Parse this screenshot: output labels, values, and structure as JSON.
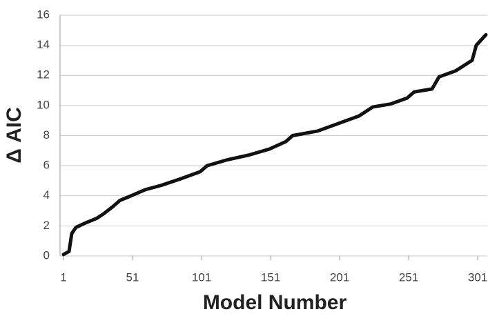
{
  "chart_data": {
    "type": "line",
    "xlabel": "Model Number",
    "ylabel": "Δ AIC",
    "x": [
      1,
      5,
      7,
      10,
      17,
      25,
      30,
      37,
      42,
      50,
      60,
      72,
      85,
      100,
      105,
      120,
      135,
      150,
      162,
      167,
      185,
      200,
      215,
      225,
      238,
      250,
      255,
      268,
      273,
      285,
      297,
      300,
      307
    ],
    "series": [
      {
        "name": "Δ AIC",
        "color": "#111111",
        "values": [
          0.1,
          0.3,
          1.5,
          1.9,
          2.2,
          2.5,
          2.8,
          3.3,
          3.7,
          4.0,
          4.4,
          4.7,
          5.1,
          5.6,
          6.0,
          6.4,
          6.7,
          7.1,
          7.6,
          8.0,
          8.3,
          8.8,
          9.3,
          9.9,
          10.1,
          10.5,
          10.9,
          11.1,
          11.9,
          12.3,
          13.0,
          14.0,
          14.7
        ]
      }
    ],
    "xlim": [
      1,
      308
    ],
    "xticks": [
      1,
      51,
      101,
      151,
      201,
      251,
      301
    ],
    "ylim": [
      0,
      16
    ],
    "yticks": [
      0,
      2,
      4,
      6,
      8,
      10,
      12,
      14,
      16
    ],
    "grid": true
  }
}
